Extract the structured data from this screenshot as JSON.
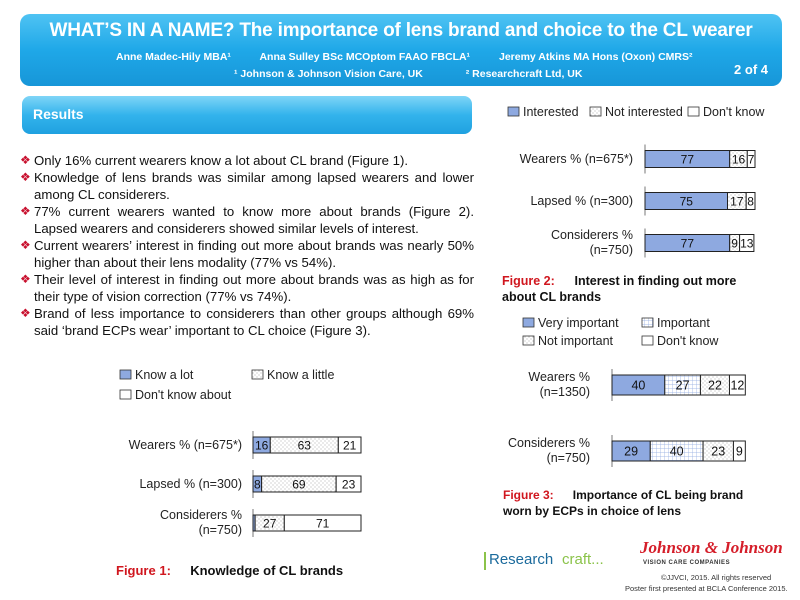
{
  "header": {
    "title": "WHAT’S IN A NAME? The importance of lens brand and choice to the CL wearer",
    "authors": [
      "Anne Madec-Hily MBA¹",
      "Anna Sulley BSc MCOptom FAAO FBCLA¹",
      "Jeremy Atkins MA Hons (Oxon) CMRS²"
    ],
    "affiliations": [
      "¹ Johnson & Johnson Vision Care, UK",
      "² Researchcraft Ltd, UK"
    ],
    "page": "2 of 4"
  },
  "results_label": "Results",
  "bullets": [
    "Only 16% current wearers know a lot about CL brand (Figure 1).",
    "Knowledge of lens brands was similar among lapsed wearers and lower among CL considerers.",
    "77% current wearers wanted to know more about brands (Figure 2). Lapsed wearers and considerers showed similar levels of interest.",
    "Current wearers’ interest in finding out more about brands was nearly 50% higher than about their lens modality (77% vs 54%).",
    "Their level of interest in finding out more about brands was as high as for their type of vision correction (77% vs 74%).",
    "Brand of less importance to considerers than other groups although 69% said ‘brand ECPs wear’ important to CL choice (Figure 3)."
  ],
  "colors": {
    "header": "#1fa8e8",
    "bar_blue": "#8ea9e0",
    "figure_red": "#d0161e",
    "bullet_marker": "#c8102e"
  },
  "chart_data": [
    {
      "type": "bar",
      "orientation": "horizontal-stacked",
      "caption_prefix": "Figure 1:",
      "caption_text": "Knowledge of CL brands",
      "categories": [
        "Wearers % (n=675*)",
        "Lapsed % (n=300)",
        "Considerers % (n=750)"
      ],
      "series": [
        {
          "name": "Know a lot",
          "values": [
            16,
            8,
            2
          ],
          "pattern": "blue"
        },
        {
          "name": "Know a little",
          "values": [
            63,
            69,
            27
          ],
          "pattern": "dots"
        },
        {
          "name": "Don't know about",
          "values": [
            21,
            23,
            71
          ],
          "pattern": "white"
        }
      ],
      "xlim": [
        0,
        100
      ]
    },
    {
      "type": "bar",
      "orientation": "horizontal-stacked",
      "caption_prefix": "Figure 2:",
      "caption_text": "Interest in finding out more about CL brands",
      "categories": [
        "Wearers % (n=675*)",
        "Lapsed % (n=300)",
        "Considerers % (n=750)"
      ],
      "series": [
        {
          "name": "Interested",
          "values": [
            77,
            75,
            77
          ],
          "pattern": "blue"
        },
        {
          "name": "Not interested",
          "values": [
            16,
            17,
            9
          ],
          "pattern": "dots"
        },
        {
          "name": "Don't know",
          "values": [
            7,
            8,
            13
          ],
          "pattern": "white"
        }
      ],
      "xlim": [
        0,
        100
      ]
    },
    {
      "type": "bar",
      "orientation": "horizontal-stacked",
      "caption_prefix": "Figure 3:",
      "caption_text": "Importance of CL being brand worn by ECPs in choice of lens",
      "categories": [
        "Wearers % (n=1350)",
        "Considerers % (n=750)"
      ],
      "series": [
        {
          "name": "Very important",
          "values": [
            40,
            29
          ],
          "pattern": "blue"
        },
        {
          "name": "Important",
          "values": [
            27,
            40
          ],
          "pattern": "grid"
        },
        {
          "name": "Not important",
          "values": [
            22,
            23
          ],
          "pattern": "dots"
        },
        {
          "name": "Don't know",
          "values": [
            12,
            9
          ],
          "pattern": "white"
        }
      ],
      "xlim": [
        0,
        100
      ]
    }
  ],
  "footer": {
    "researchcraft_a": "Research",
    "researchcraft_b": "craft...",
    "jj_logo": "Johnson & Johnson",
    "jj_sub": "VISION CARE COMPANIES",
    "copyright": "©JJVCI, 2015. All rights reserved",
    "presented": "Poster first presented at BCLA Conference 2015."
  }
}
